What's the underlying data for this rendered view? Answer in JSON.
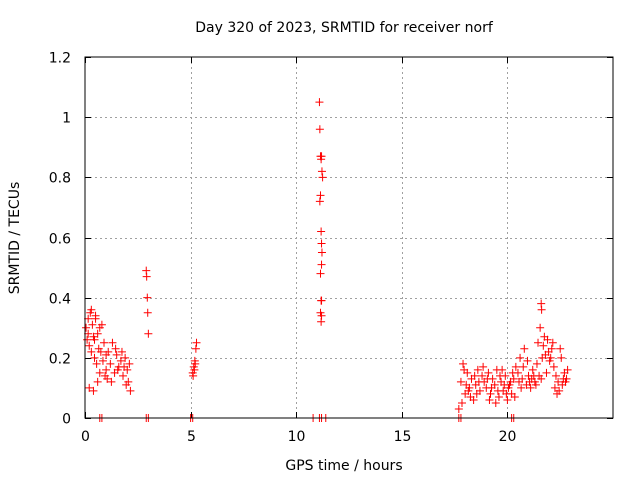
{
  "chart_data": {
    "type": "scatter",
    "title": "Day 320 of 2023, SRMTID for receiver norf",
    "xlabel": "GPS time / hours",
    "ylabel": "SRMTID / TECUs",
    "xlim": [
      0,
      25
    ],
    "ylim": [
      0,
      1.2
    ],
    "grid": true,
    "marker": "+",
    "x_ticks": [
      {
        "value": 0,
        "label": "0"
      },
      {
        "value": 5,
        "label": "5"
      },
      {
        "value": 10,
        "label": "10"
      },
      {
        "value": 15,
        "label": "15"
      },
      {
        "value": 20,
        "label": "20"
      }
    ],
    "y_ticks": [
      {
        "value": 0,
        "label": "0"
      },
      {
        "value": 0.2,
        "label": "0.2"
      },
      {
        "value": 0.4,
        "label": "0.4"
      },
      {
        "value": 0.6,
        "label": "0.6"
      },
      {
        "value": 0.8,
        "label": "0.8"
      },
      {
        "value": 1,
        "label": "1"
      },
      {
        "value": 1.2,
        "label": "1.2"
      }
    ],
    "series": [
      {
        "name": "SRMTID",
        "color": "#ff0000",
        "points": [
          [
            0.05,
            0.3
          ],
          [
            0.1,
            0.26
          ],
          [
            0.15,
            0.33
          ],
          [
            0.2,
            0.24
          ],
          [
            0.25,
            0.35
          ],
          [
            0.3,
            0.22
          ],
          [
            0.35,
            0.31
          ],
          [
            0.4,
            0.27
          ],
          [
            0.45,
            0.2
          ],
          [
            0.5,
            0.33
          ],
          [
            0.55,
            0.18
          ],
          [
            0.6,
            0.28
          ],
          [
            0.65,
            0.23
          ],
          [
            0.7,
            0.15
          ],
          [
            0.75,
            0.22
          ],
          [
            0.8,
            0.31
          ],
          [
            0.85,
            0.19
          ],
          [
            0.9,
            0.25
          ],
          [
            0.95,
            0.14
          ],
          [
            1.0,
            0.21
          ],
          [
            0.2,
            0.1
          ],
          [
            0.4,
            0.09
          ],
          [
            0.6,
            0.12
          ],
          [
            0.3,
            0.36
          ],
          [
            0.5,
            0.34
          ],
          [
            0.7,
            0.3
          ],
          [
            0.15,
            0.28
          ],
          [
            0.45,
            0.26
          ],
          [
            1.0,
            0.16
          ],
          [
            1.1,
            0.22
          ],
          [
            1.2,
            0.18
          ],
          [
            1.3,
            0.25
          ],
          [
            1.4,
            0.15
          ],
          [
            1.5,
            0.21
          ],
          [
            1.6,
            0.17
          ],
          [
            1.7,
            0.19
          ],
          [
            1.8,
            0.14
          ],
          [
            1.9,
            0.2
          ],
          [
            2.0,
            0.16
          ],
          [
            2.05,
            0.12
          ],
          [
            2.1,
            0.18
          ],
          [
            2.15,
            0.09
          ],
          [
            1.25,
            0.12
          ],
          [
            1.45,
            0.23
          ],
          [
            1.75,
            0.22
          ],
          [
            1.95,
            0.11
          ],
          [
            1.05,
            0.13
          ],
          [
            1.55,
            0.16
          ],
          [
            1.85,
            0.17
          ],
          [
            2.9,
            0.49
          ],
          [
            2.92,
            0.47
          ],
          [
            2.95,
            0.4
          ],
          [
            2.97,
            0.35
          ],
          [
            3.0,
            0.28
          ],
          [
            5.1,
            0.15
          ],
          [
            5.15,
            0.17
          ],
          [
            5.2,
            0.19
          ],
          [
            5.25,
            0.23
          ],
          [
            5.28,
            0.25
          ],
          [
            5.18,
            0.16
          ],
          [
            5.22,
            0.18
          ],
          [
            5.12,
            0.14
          ],
          [
            11.1,
            1.05
          ],
          [
            11.12,
            0.96
          ],
          [
            11.15,
            0.87
          ],
          [
            11.18,
            0.86
          ],
          [
            11.2,
            0.87
          ],
          [
            11.22,
            0.82
          ],
          [
            11.25,
            0.8
          ],
          [
            11.15,
            0.74
          ],
          [
            11.12,
            0.72
          ],
          [
            11.18,
            0.62
          ],
          [
            11.2,
            0.58
          ],
          [
            11.22,
            0.55
          ],
          [
            11.2,
            0.51
          ],
          [
            11.15,
            0.48
          ],
          [
            11.18,
            0.39
          ],
          [
            11.2,
            0.39
          ],
          [
            11.15,
            0.35
          ],
          [
            11.18,
            0.32
          ],
          [
            11.2,
            0.34
          ],
          [
            17.7,
            0.03
          ],
          [
            17.8,
            0.12
          ],
          [
            17.9,
            0.18
          ],
          [
            18.0,
            0.08
          ],
          [
            18.1,
            0.15
          ],
          [
            18.2,
            0.1
          ],
          [
            18.3,
            0.13
          ],
          [
            18.4,
            0.06
          ],
          [
            18.5,
            0.11
          ],
          [
            18.6,
            0.16
          ],
          [
            18.7,
            0.09
          ],
          [
            18.8,
            0.14
          ],
          [
            18.9,
            0.12
          ],
          [
            19.0,
            0.1
          ],
          [
            19.1,
            0.15
          ],
          [
            19.2,
            0.08
          ],
          [
            19.3,
            0.13
          ],
          [
            19.4,
            0.11
          ],
          [
            19.5,
            0.16
          ],
          [
            19.6,
            0.07
          ],
          [
            19.7,
            0.12
          ],
          [
            19.8,
            0.09
          ],
          [
            19.9,
            0.14
          ],
          [
            20.0,
            0.06
          ],
          [
            20.1,
            0.11
          ],
          [
            20.2,
            0.08
          ],
          [
            20.3,
            0.13
          ],
          [
            20.4,
            0.17
          ],
          [
            17.85,
            0.05
          ],
          [
            17.95,
            0.16
          ],
          [
            18.05,
            0.11
          ],
          [
            18.25,
            0.07
          ],
          [
            18.45,
            0.14
          ],
          [
            18.65,
            0.12
          ],
          [
            18.85,
            0.17
          ],
          [
            19.05,
            0.13
          ],
          [
            19.25,
            0.1
          ],
          [
            19.45,
            0.05
          ],
          [
            19.65,
            0.14
          ],
          [
            19.85,
            0.11
          ],
          [
            20.05,
            0.1
          ],
          [
            20.25,
            0.15
          ],
          [
            20.35,
            0.07
          ],
          [
            18.15,
            0.09
          ],
          [
            18.55,
            0.08
          ],
          [
            19.15,
            0.06
          ],
          [
            19.55,
            0.09
          ],
          [
            19.75,
            0.16
          ],
          [
            19.95,
            0.08
          ],
          [
            20.15,
            0.12
          ],
          [
            20.5,
            0.15
          ],
          [
            20.6,
            0.2
          ],
          [
            20.7,
            0.13
          ],
          [
            20.8,
            0.23
          ],
          [
            20.9,
            0.11
          ],
          [
            21.0,
            0.14
          ],
          [
            21.1,
            0.1
          ],
          [
            21.2,
            0.16
          ],
          [
            21.3,
            0.12
          ],
          [
            21.4,
            0.18
          ],
          [
            21.5,
            0.14
          ],
          [
            21.6,
            0.13
          ],
          [
            21.45,
            0.25
          ],
          [
            21.55,
            0.3
          ],
          [
            21.6,
            0.38
          ],
          [
            21.62,
            0.36
          ],
          [
            21.7,
            0.24
          ],
          [
            21.8,
            0.21
          ],
          [
            21.9,
            0.26
          ],
          [
            22.0,
            0.19
          ],
          [
            22.1,
            0.23
          ],
          [
            22.2,
            0.17
          ],
          [
            22.3,
            0.14
          ],
          [
            22.35,
            0.08
          ],
          [
            22.4,
            0.12
          ],
          [
            22.5,
            0.23
          ],
          [
            22.6,
            0.11
          ],
          [
            22.7,
            0.15
          ],
          [
            22.8,
            0.13
          ],
          [
            22.85,
            0.16
          ],
          [
            20.55,
            0.12
          ],
          [
            20.75,
            0.17
          ],
          [
            20.95,
            0.19
          ],
          [
            21.05,
            0.12
          ],
          [
            21.25,
            0.14
          ],
          [
            21.35,
            0.11
          ],
          [
            21.65,
            0.2
          ],
          [
            21.75,
            0.27
          ],
          [
            21.85,
            0.15
          ],
          [
            21.95,
            0.22
          ],
          [
            22.05,
            0.2
          ],
          [
            22.15,
            0.25
          ],
          [
            22.25,
            0.1
          ],
          [
            22.45,
            0.09
          ],
          [
            22.55,
            0.2
          ],
          [
            22.65,
            0.13
          ],
          [
            22.75,
            0.12
          ],
          [
            21.15,
            0.13
          ],
          [
            20.65,
            0.1
          ],
          [
            0.7,
            0.0
          ],
          [
            0.8,
            0.0
          ],
          [
            2.9,
            0.0
          ],
          [
            3.0,
            0.0
          ],
          [
            5.0,
            0.0
          ],
          [
            5.1,
            0.0
          ],
          [
            10.8,
            0.0
          ],
          [
            11.1,
            0.0
          ],
          [
            11.2,
            0.0
          ],
          [
            11.4,
            0.0
          ],
          [
            17.7,
            0.0
          ],
          [
            17.8,
            0.0
          ],
          [
            20.2,
            0.0
          ],
          [
            20.3,
            0.0
          ]
        ]
      }
    ]
  }
}
